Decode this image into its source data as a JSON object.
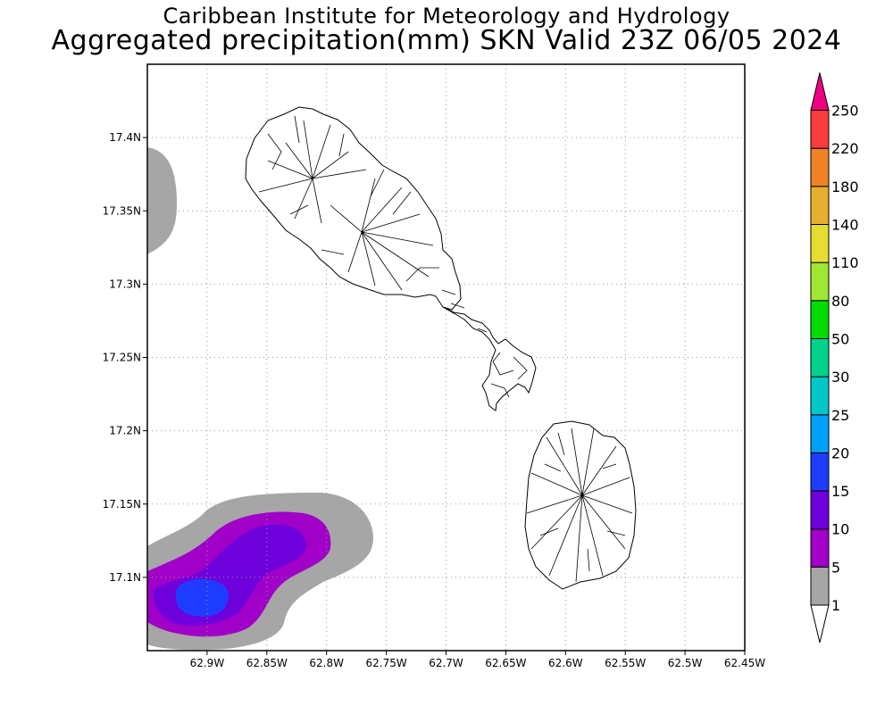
{
  "header": {
    "title_line1": "Caribbean Institute for Meteorology and Hydrology",
    "title_line2": "Aggregated precipitation(mm) SKN Valid 23Z 06/05 2024"
  },
  "map": {
    "lon_range": [
      -62.95,
      -62.45
    ],
    "lat_range": [
      17.05,
      17.45
    ],
    "lon_ticks": [
      {
        "value": -62.9,
        "label": "62.9W"
      },
      {
        "value": -62.85,
        "label": "62.85W"
      },
      {
        "value": -62.8,
        "label": "62.8W"
      },
      {
        "value": -62.75,
        "label": "62.75W"
      },
      {
        "value": -62.7,
        "label": "62.7W"
      },
      {
        "value": -62.65,
        "label": "62.65W"
      },
      {
        "value": -62.6,
        "label": "62.6W"
      },
      {
        "value": -62.55,
        "label": "62.55W"
      },
      {
        "value": -62.5,
        "label": "62.5W"
      },
      {
        "value": -62.45,
        "label": "62.45W"
      }
    ],
    "lat_ticks": [
      {
        "value": 17.4,
        "label": "17.4N"
      },
      {
        "value": 17.35,
        "label": "17.35N"
      },
      {
        "value": 17.3,
        "label": "17.3N"
      },
      {
        "value": 17.25,
        "label": "17.25N"
      },
      {
        "value": 17.2,
        "label": "17.2N"
      },
      {
        "value": 17.15,
        "label": "17.15N"
      },
      {
        "value": 17.1,
        "label": "17.1N"
      }
    ],
    "islands": [
      "Saint Kitts",
      "Nevis"
    ]
  },
  "colorbar": {
    "levels": [
      {
        "label": "1",
        "color": "#ffffff"
      },
      {
        "label": "5",
        "color": "#a6a6a6"
      },
      {
        "label": "10",
        "color": "#a000c8"
      },
      {
        "label": "15",
        "color": "#6e00dc"
      },
      {
        "label": "20",
        "color": "#1e3cff"
      },
      {
        "label": "25",
        "color": "#00a0ff"
      },
      {
        "label": "30",
        "color": "#00c8c8"
      },
      {
        "label": "50",
        "color": "#00d28c"
      },
      {
        "label": "80",
        "color": "#00dc00"
      },
      {
        "label": "110",
        "color": "#a0e632"
      },
      {
        "label": "140",
        "color": "#e6dc32"
      },
      {
        "label": "180",
        "color": "#e6af2d"
      },
      {
        "label": "220",
        "color": "#f08228"
      },
      {
        "label": "250",
        "color": "#fa3c3c"
      }
    ],
    "top_arrow_color": "#f00082",
    "bottom_arrow_color": "#ffffff"
  },
  "colors": {
    "grid": "#999999",
    "frame": "#000000",
    "precip_light": "#a6a6a6",
    "precip_purple": "#a000c8",
    "precip_violet": "#6e00dc",
    "precip_blue": "#1e3cff"
  }
}
